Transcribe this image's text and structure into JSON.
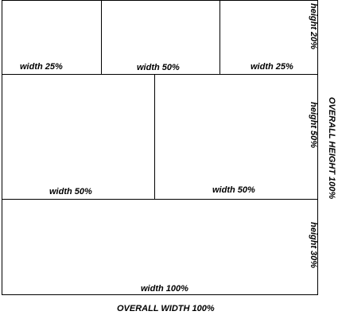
{
  "rows": [
    {
      "height_label": "height 20%",
      "cells": [
        {
          "label": "width 25%"
        },
        {
          "label": "width 50%"
        },
        {
          "label": "width 25%"
        }
      ]
    },
    {
      "height_label": "height 50%",
      "cells": [
        {
          "label": "width 50%"
        },
        {
          "label": "width 50%"
        }
      ]
    },
    {
      "height_label": "height 30%",
      "cells": [
        {
          "label": "width 100%"
        }
      ]
    }
  ],
  "overall_height_label": "OVERALL HEIGHT 100%",
  "overall_width_label": "OVERALL WIDTH 100%"
}
